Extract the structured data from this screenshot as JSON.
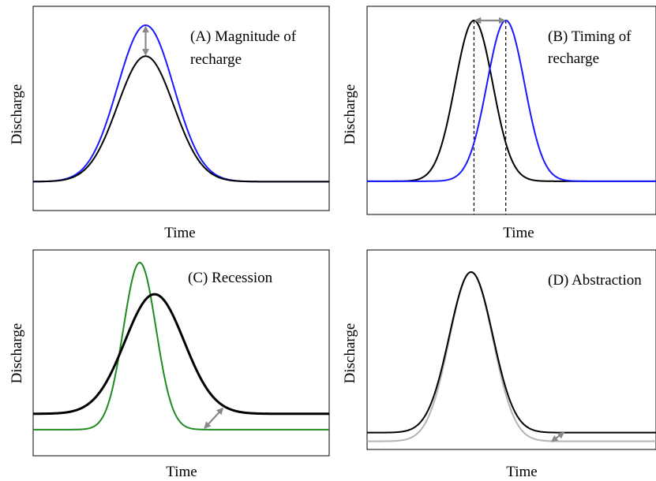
{
  "chart_data": [
    {
      "type": "line",
      "title": "",
      "annotation": [
        "(A) Magnitude of",
        "recharge"
      ],
      "xlabel": "Time",
      "ylabel": "Discharge",
      "xlim": [
        0,
        100
      ],
      "ylim": [
        0,
        100
      ],
      "grid": false,
      "series": [
        {
          "color": "#1a1aff",
          "width": 2,
          "peak_x": 38,
          "peak_y": 100,
          "base_y": 9,
          "sigma_left": 9.5,
          "sigma_right": 9.5
        },
        {
          "color": "#000000",
          "width": 2,
          "peak_x": 38,
          "peak_y": 82,
          "base_y": 9,
          "sigma_left": 9.5,
          "sigma_right": 9.5
        }
      ],
      "arrows": [
        {
          "orientation": "vertical",
          "x": 38,
          "y1": 99,
          "y2": 83,
          "color": "#888888"
        }
      ]
    },
    {
      "type": "line",
      "title": "",
      "annotation": [
        "(B) Timing of",
        "recharge"
      ],
      "xlabel": "Time",
      "ylabel": "Discharge",
      "xlim": [
        0,
        100
      ],
      "ylim": [
        0,
        100
      ],
      "grid": false,
      "series": [
        {
          "color": "#000000",
          "width": 2,
          "peak_x": 37,
          "peak_y": 100,
          "base_y": 9,
          "sigma_left": 6.5,
          "sigma_right": 6.5
        },
        {
          "color": "#1a1aff",
          "width": 2,
          "peak_x": 48,
          "peak_y": 100,
          "base_y": 9,
          "sigma_left": 6.5,
          "sigma_right": 6.5
        }
      ],
      "arrows": [
        {
          "orientation": "horizontal",
          "y": 100,
          "x1": 37.5,
          "x2": 47.5,
          "color": "#888888"
        }
      ],
      "dashed_lines": [
        37,
        48
      ]
    },
    {
      "type": "line",
      "title": "",
      "annotation": [
        "(C) Recession"
      ],
      "xlabel": "Time",
      "ylabel": "Discharge",
      "xlim": [
        0,
        100
      ],
      "ylim": [
        0,
        100
      ],
      "grid": false,
      "series": [
        {
          "color": "#1f8b1f",
          "width": 2,
          "peak_x": 36,
          "peak_y": 100,
          "base_y": 5,
          "sigma_left": 5.5,
          "sigma_right": 5.5
        },
        {
          "color": "#000000",
          "width": 3,
          "peak_x": 41,
          "peak_y": 82,
          "base_y": 14,
          "sigma_left": 10,
          "sigma_right": 10
        }
      ],
      "arrows": [
        {
          "orientation": "diagonal",
          "x1": 58,
          "y1": 6,
          "x2": 64,
          "y2": 17,
          "color": "#888888"
        }
      ]
    },
    {
      "type": "line",
      "title": "",
      "annotation": [
        "(D) Abstraction"
      ],
      "xlabel": "Time",
      "ylabel": "Discharge",
      "xlim": [
        0,
        100
      ],
      "ylim": [
        0,
        100
      ],
      "grid": false,
      "series": [
        {
          "color": "#b4b4b4",
          "width": 2,
          "peak_x": 36,
          "peak_y": 100,
          "base_y": 2,
          "sigma_left": 7.5,
          "sigma_right": 7.5
        },
        {
          "color": "#000000",
          "width": 2,
          "peak_x": 36,
          "peak_y": 100,
          "base_y": 7,
          "sigma_left": 7.5,
          "sigma_right": 7.5
        }
      ],
      "arrows": [
        {
          "orientation": "diagonal",
          "x1": 64,
          "y1": 2,
          "x2": 68,
          "y2": 7,
          "color": "#888888"
        }
      ]
    }
  ]
}
